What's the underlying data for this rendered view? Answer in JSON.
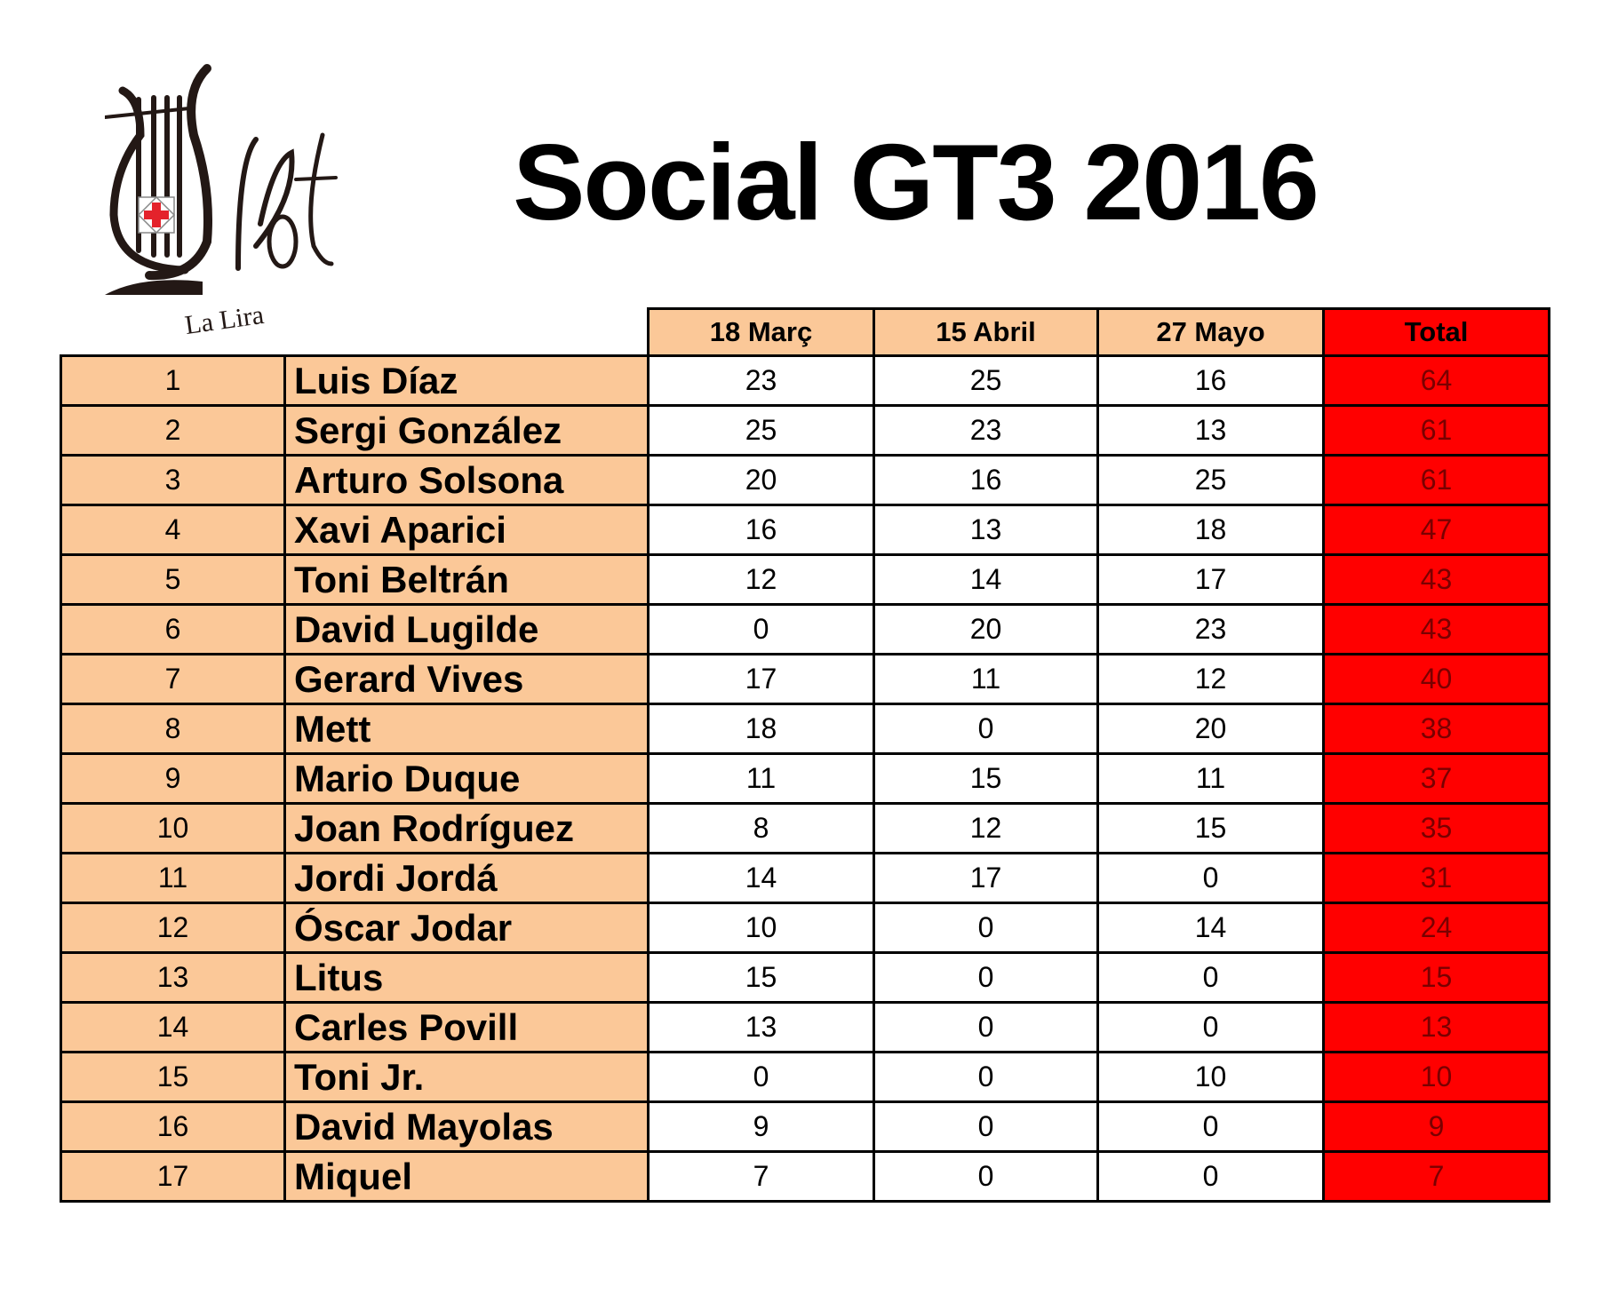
{
  "logo": {
    "text": "Slot",
    "subtitle": "La Lira",
    "accent": "#e4222b"
  },
  "title": "Social GT3 2016",
  "columns": [
    "18 Març",
    "15 Abril",
    "27 Mayo",
    "Total"
  ],
  "colors": {
    "header": "#fbc898",
    "total": "#ff0000"
  },
  "rows": [
    {
      "pos": "1",
      "name": "Luis Díaz",
      "r1": "23",
      "r2": "25",
      "r3": "16",
      "total": "64"
    },
    {
      "pos": "2",
      "name": "Sergi González",
      "r1": "25",
      "r2": "23",
      "r3": "13",
      "total": "61"
    },
    {
      "pos": "3",
      "name": "Arturo Solsona",
      "r1": "20",
      "r2": "16",
      "r3": "25",
      "total": "61"
    },
    {
      "pos": "4",
      "name": "Xavi Aparici",
      "r1": "16",
      "r2": "13",
      "r3": "18",
      "total": "47"
    },
    {
      "pos": "5",
      "name": "Toni Beltrán",
      "r1": "12",
      "r2": "14",
      "r3": "17",
      "total": "43"
    },
    {
      "pos": "6",
      "name": "David Lugilde",
      "r1": "0",
      "r2": "20",
      "r3": "23",
      "total": "43"
    },
    {
      "pos": "7",
      "name": "Gerard Vives",
      "r1": "17",
      "r2": "11",
      "r3": "12",
      "total": "40"
    },
    {
      "pos": "8",
      "name": "Mett",
      "r1": "18",
      "r2": "0",
      "r3": "20",
      "total": "38"
    },
    {
      "pos": "9",
      "name": "Mario Duque",
      "r1": "11",
      "r2": "15",
      "r3": "11",
      "total": "37"
    },
    {
      "pos": "10",
      "name": "Joan Rodríguez",
      "r1": "8",
      "r2": "12",
      "r3": "15",
      "total": "35"
    },
    {
      "pos": "11",
      "name": "Jordi Jordá",
      "r1": "14",
      "r2": "17",
      "r3": "0",
      "total": "31"
    },
    {
      "pos": "12",
      "name": "Óscar Jodar",
      "r1": "10",
      "r2": "0",
      "r3": "14",
      "total": "24"
    },
    {
      "pos": "13",
      "name": "Litus",
      "r1": "15",
      "r2": "0",
      "r3": "0",
      "total": "15"
    },
    {
      "pos": "14",
      "name": "Carles Povill",
      "r1": "13",
      "r2": "0",
      "r3": "0",
      "total": "13"
    },
    {
      "pos": "15",
      "name": "Toni Jr.",
      "r1": "0",
      "r2": "0",
      "r3": "10",
      "total": "10"
    },
    {
      "pos": "16",
      "name": "David Mayolas",
      "r1": "9",
      "r2": "0",
      "r3": "0",
      "total": "9"
    },
    {
      "pos": "17",
      "name": "Miquel",
      "r1": "7",
      "r2": "0",
      "r3": "0",
      "total": "7"
    }
  ]
}
